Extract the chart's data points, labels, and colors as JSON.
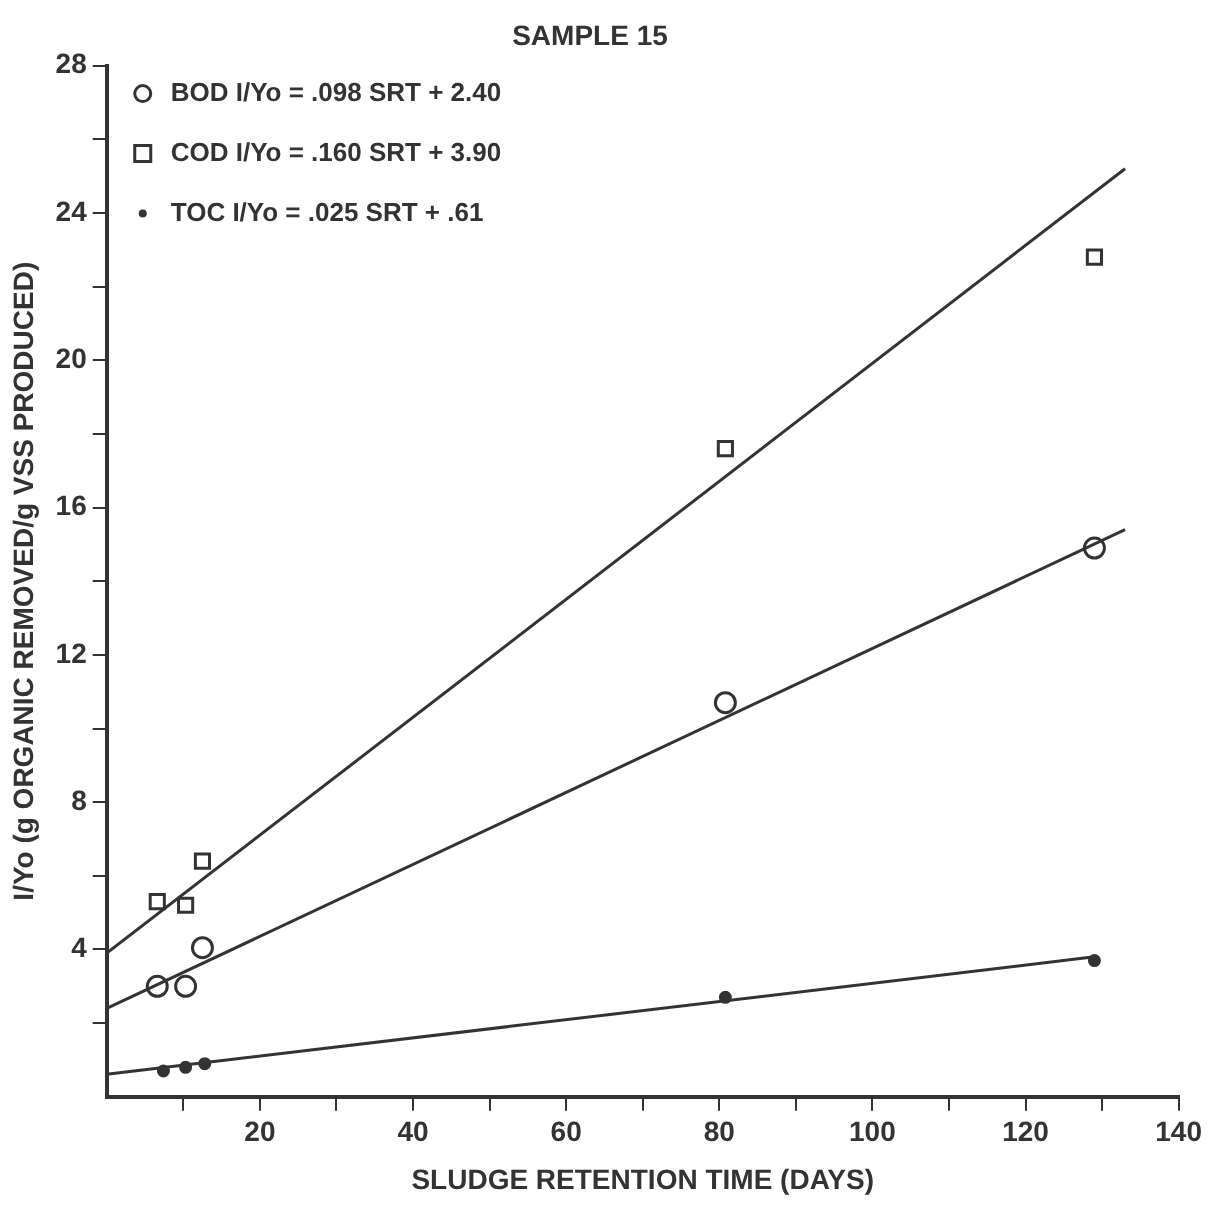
{
  "chart_data": {
    "type": "scatter",
    "title": "SAMPLE 15",
    "xlabel": "SLUDGE RETENTION TIME (DAYS)",
    "ylabel": "I/Yo (g ORGANIC REMOVED/g VSS PRODUCED)",
    "xlim": [
      0,
      140
    ],
    "ylim": [
      0,
      28
    ],
    "xticks": [
      {
        "value": 10,
        "label": null
      },
      20,
      {
        "value": 30,
        "label": null
      },
      40,
      {
        "value": 50,
        "label": null
      },
      60,
      {
        "value": 70,
        "label": null
      },
      80,
      {
        "value": 90,
        "label": null
      },
      100,
      {
        "value": 110,
        "label": null
      },
      120,
      {
        "value": 130,
        "label": null
      },
      140
    ],
    "yticks": [
      {
        "value": 2,
        "label": null
      },
      4,
      {
        "value": 6,
        "label": null
      },
      8,
      {
        "value": 10,
        "label": null
      },
      12,
      {
        "value": 14,
        "label": null
      },
      16,
      {
        "value": 18,
        "label": null
      },
      20,
      {
        "value": 22,
        "label": null
      },
      24,
      {
        "value": 26,
        "label": null
      },
      28
    ],
    "grid": false,
    "legend": "top left",
    "series": [
      {
        "name": "BOD I/Yo = .098 SRT + 2.40",
        "type": "scatter",
        "marker": "circle",
        "color": "#333333",
        "x": [
          6.6,
          10.3,
          12.5,
          80.8,
          129
        ],
        "values": [
          3.0,
          3.0,
          4.05,
          10.7,
          14.9
        ]
      },
      {
        "name": "COD I/Yo = .160 SRT + 3.90",
        "type": "scatter",
        "marker": "square",
        "color": "#333333",
        "x": [
          6.6,
          10.3,
          12.5,
          80.8,
          129
        ],
        "values": [
          5.3,
          5.2,
          6.4,
          17.6,
          22.8
        ]
      },
      {
        "name": "TOC I/Yo = .025 SRT + .61",
        "type": "scatter",
        "marker": "dot",
        "color": "#333333",
        "x": [
          7.4,
          10.3,
          12.8,
          80.8,
          129
        ],
        "values": [
          0.7,
          0.8,
          0.9,
          2.7,
          3.7
        ]
      },
      {
        "type": "line",
        "color": "#333333",
        "x": [
          0,
          133
        ],
        "values": [
          2.4,
          15.4
        ]
      },
      {
        "type": "line",
        "color": "#333333",
        "x": [
          0,
          133
        ],
        "values": [
          3.9,
          25.2
        ]
      },
      {
        "type": "line",
        "color": "#333333",
        "x": [
          0,
          129
        ],
        "values": [
          0.61,
          3.8
        ]
      }
    ]
  }
}
